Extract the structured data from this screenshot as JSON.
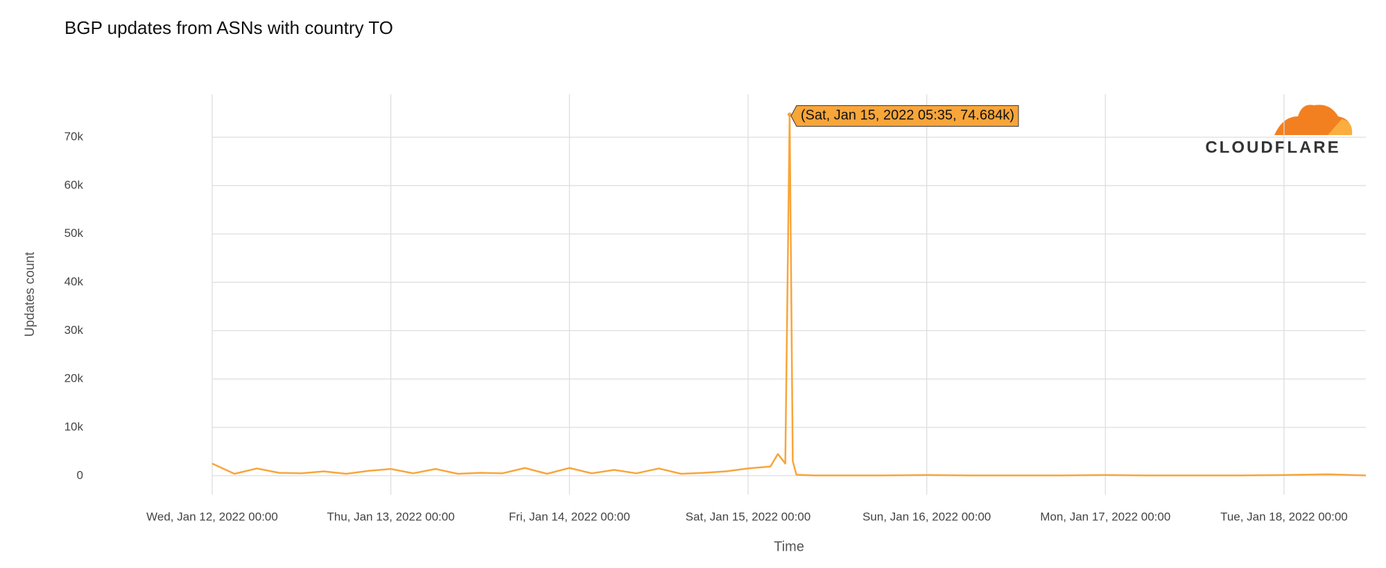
{
  "chart_data": {
    "type": "line",
    "title": "BGP updates from ASNs with country TO",
    "x_label": "Time",
    "y_label": "Updates count",
    "logo_text": "CLOUDFLARE",
    "color": "#f8a53a",
    "grid": true,
    "x": [
      "2022-01-12 00:00",
      "2022-01-12 03:00",
      "2022-01-12 06:00",
      "2022-01-12 09:00",
      "2022-01-12 12:00",
      "2022-01-12 15:00",
      "2022-01-12 18:00",
      "2022-01-12 21:00",
      "2022-01-13 00:00",
      "2022-01-13 03:00",
      "2022-01-13 06:00",
      "2022-01-13 09:00",
      "2022-01-13 12:00",
      "2022-01-13 15:00",
      "2022-01-13 18:00",
      "2022-01-13 21:00",
      "2022-01-14 00:00",
      "2022-01-14 03:00",
      "2022-01-14 06:00",
      "2022-01-14 09:00",
      "2022-01-14 12:00",
      "2022-01-14 15:00",
      "2022-01-14 18:00",
      "2022-01-14 21:00",
      "2022-01-15 00:00",
      "2022-01-15 03:00",
      "2022-01-15 04:00",
      "2022-01-15 05:00",
      "2022-01-15 05:35",
      "2022-01-15 06:00",
      "2022-01-15 06:30",
      "2022-01-15 09:00",
      "2022-01-15 12:00",
      "2022-01-15 18:00",
      "2022-01-16 00:00",
      "2022-01-16 06:00",
      "2022-01-16 12:00",
      "2022-01-16 18:00",
      "2022-01-17 00:00",
      "2022-01-17 06:00",
      "2022-01-17 12:00",
      "2022-01-17 18:00",
      "2022-01-18 00:00",
      "2022-01-18 06:00",
      "2022-01-18 11:00"
    ],
    "values": [
      2500,
      400,
      1500,
      600,
      500,
      900,
      400,
      1000,
      1400,
      500,
      1400,
      400,
      600,
      500,
      1600,
      400,
      1600,
      500,
      1200,
      500,
      1500,
      400,
      600,
      900,
      1500,
      1900,
      4500,
      2500,
      74684,
      3000,
      200,
      50,
      50,
      50,
      150,
      50,
      50,
      50,
      150,
      50,
      50,
      50,
      150,
      300,
      50
    ],
    "xlim": [
      "2022-01-12 00:00",
      "2022-01-18 11:00"
    ],
    "xticks": [
      {
        "value": "2022-01-12 00:00",
        "label": "Wed, Jan 12, 2022 00:00"
      },
      {
        "value": "2022-01-13 00:00",
        "label": "Thu, Jan 13, 2022 00:00"
      },
      {
        "value": "2022-01-14 00:00",
        "label": "Fri, Jan 14, 2022 00:00"
      },
      {
        "value": "2022-01-15 00:00",
        "label": "Sat, Jan 15, 2022 00:00"
      },
      {
        "value": "2022-01-16 00:00",
        "label": "Sun, Jan 16, 2022 00:00"
      },
      {
        "value": "2022-01-17 00:00",
        "label": "Mon, Jan 17, 2022 00:00"
      },
      {
        "value": "2022-01-18 00:00",
        "label": "Tue, Jan 18, 2022 00:00"
      }
    ],
    "ylim": [
      -3900,
      78900
    ],
    "yticks": [
      0,
      {
        "value": 10000,
        "label": "10k"
      },
      {
        "value": 20000,
        "label": "20k"
      },
      {
        "value": 30000,
        "label": "30k"
      },
      {
        "value": 40000,
        "label": "40k"
      },
      {
        "value": 50000,
        "label": "50k"
      },
      {
        "value": 60000,
        "label": "60k"
      },
      {
        "value": 70000,
        "label": "70k"
      }
    ],
    "annotation": {
      "text": "(Sat, Jan 15, 2022 05:35, 74.684k)",
      "x": "2022-01-15 05:35",
      "y": 74684
    }
  }
}
